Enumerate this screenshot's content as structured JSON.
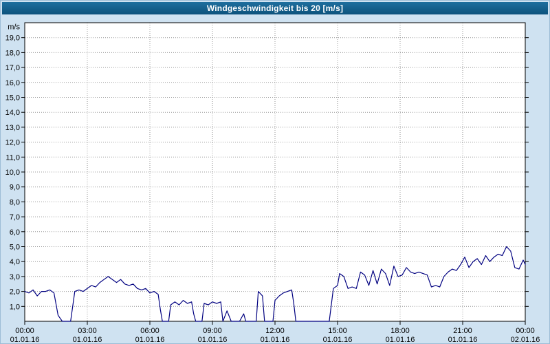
{
  "titlebar": {
    "title": "Windgeschwindigkeit bis 20 [m/s]"
  },
  "colors": {
    "background": "#cfe2f1",
    "titlebar_top": "#1e6f9e",
    "titlebar_bottom": "#0d527c",
    "title_text": "#ffffff",
    "plot_background": "#ffffff",
    "axis": "#000000",
    "grid": "#999999",
    "series_line": "#000080"
  },
  "chart_data": {
    "type": "line",
    "title": "Windgeschwindigkeit bis 20 [m/s]",
    "ylabel": "m/s",
    "xlabel": "",
    "ylim": [
      0,
      20
    ],
    "xlim_hours": [
      0,
      24
    ],
    "grid": true,
    "legend_position": "none",
    "grid_color": "#999999",
    "y_tick_labels_top_down": [
      "19,0",
      "18,0",
      "17,0",
      "16,0",
      "15,0",
      "14,0",
      "13,0",
      "12,0",
      "11,0",
      "10,0",
      "9,0",
      "8,0",
      "7,0",
      "6,0",
      "5,0",
      "4,0",
      "3,0",
      "2,0",
      "1,0"
    ],
    "x_ticks": [
      {
        "hour": 0,
        "time": "00:00",
        "date": "01.01.16"
      },
      {
        "hour": 3,
        "time": "03:00",
        "date": "01.01.16"
      },
      {
        "hour": 6,
        "time": "06:00",
        "date": "01.01.16"
      },
      {
        "hour": 9,
        "time": "09:00",
        "date": "01.01.16"
      },
      {
        "hour": 12,
        "time": "12:00",
        "date": "01.01.16"
      },
      {
        "hour": 15,
        "time": "15:00",
        "date": "01.01.16"
      },
      {
        "hour": 18,
        "time": "18:00",
        "date": "01.01.16"
      },
      {
        "hour": 21,
        "time": "21:00",
        "date": "01.01.16"
      },
      {
        "hour": 24,
        "time": "00:00",
        "date": "02.01.16"
      }
    ],
    "series": [
      {
        "name": "Windgeschwindigkeit",
        "color": "#000080",
        "points_hour_value": [
          [
            0,
            2.0
          ],
          [
            0.2,
            1.9
          ],
          [
            0.4,
            2.1
          ],
          [
            0.6,
            1.7
          ],
          [
            0.8,
            2.0
          ],
          [
            1.0,
            2.0
          ],
          [
            1.2,
            2.1
          ],
          [
            1.4,
            1.9
          ],
          [
            1.6,
            0.4
          ],
          [
            1.8,
            0
          ],
          [
            2.2,
            0
          ],
          [
            2.4,
            2.0
          ],
          [
            2.6,
            2.1
          ],
          [
            2.8,
            2.0
          ],
          [
            3.0,
            2.2
          ],
          [
            3.2,
            2.4
          ],
          [
            3.4,
            2.3
          ],
          [
            3.6,
            2.6
          ],
          [
            3.8,
            2.8
          ],
          [
            4.0,
            3.0
          ],
          [
            4.2,
            2.8
          ],
          [
            4.4,
            2.6
          ],
          [
            4.6,
            2.8
          ],
          [
            4.8,
            2.5
          ],
          [
            5.0,
            2.4
          ],
          [
            5.2,
            2.5
          ],
          [
            5.4,
            2.2
          ],
          [
            5.6,
            2.1
          ],
          [
            5.8,
            2.2
          ],
          [
            6.0,
            1.9
          ],
          [
            6.2,
            2.0
          ],
          [
            6.4,
            1.8
          ],
          [
            6.5,
            0.8
          ],
          [
            6.6,
            0
          ],
          [
            6.9,
            0
          ],
          [
            7.0,
            1.1
          ],
          [
            7.2,
            1.3
          ],
          [
            7.4,
            1.1
          ],
          [
            7.6,
            1.4
          ],
          [
            7.8,
            1.2
          ],
          [
            8.0,
            1.3
          ],
          [
            8.1,
            0.5
          ],
          [
            8.2,
            0
          ],
          [
            8.5,
            0
          ],
          [
            8.6,
            1.2
          ],
          [
            8.8,
            1.1
          ],
          [
            9.0,
            1.3
          ],
          [
            9.2,
            1.2
          ],
          [
            9.4,
            1.3
          ],
          [
            9.5,
            0
          ],
          [
            9.7,
            0.7
          ],
          [
            9.9,
            0
          ],
          [
            10.3,
            0
          ],
          [
            10.5,
            0.5
          ],
          [
            10.6,
            0
          ],
          [
            11.1,
            0
          ],
          [
            11.2,
            2.0
          ],
          [
            11.4,
            1.7
          ],
          [
            11.5,
            0
          ],
          [
            11.9,
            0
          ],
          [
            12.0,
            1.4
          ],
          [
            12.2,
            1.7
          ],
          [
            12.4,
            1.9
          ],
          [
            12.6,
            2.0
          ],
          [
            12.8,
            2.1
          ],
          [
            12.9,
            1.2
          ],
          [
            13.0,
            0
          ],
          [
            14.6,
            0
          ],
          [
            14.8,
            2.2
          ],
          [
            15.0,
            2.4
          ],
          [
            15.1,
            3.2
          ],
          [
            15.3,
            3.0
          ],
          [
            15.5,
            2.2
          ],
          [
            15.7,
            2.3
          ],
          [
            15.9,
            2.2
          ],
          [
            16.1,
            3.3
          ],
          [
            16.3,
            3.1
          ],
          [
            16.5,
            2.4
          ],
          [
            16.7,
            3.4
          ],
          [
            16.9,
            2.5
          ],
          [
            17.1,
            3.5
          ],
          [
            17.3,
            3.2
          ],
          [
            17.5,
            2.4
          ],
          [
            17.7,
            3.7
          ],
          [
            17.9,
            3.0
          ],
          [
            18.1,
            3.1
          ],
          [
            18.3,
            3.6
          ],
          [
            18.5,
            3.3
          ],
          [
            18.7,
            3.2
          ],
          [
            18.9,
            3.3
          ],
          [
            19.1,
            3.2
          ],
          [
            19.3,
            3.1
          ],
          [
            19.5,
            2.3
          ],
          [
            19.7,
            2.4
          ],
          [
            19.9,
            2.3
          ],
          [
            20.1,
            3.0
          ],
          [
            20.3,
            3.3
          ],
          [
            20.5,
            3.5
          ],
          [
            20.7,
            3.4
          ],
          [
            20.9,
            3.8
          ],
          [
            21.1,
            4.3
          ],
          [
            21.3,
            3.6
          ],
          [
            21.5,
            4.0
          ],
          [
            21.7,
            4.2
          ],
          [
            21.9,
            3.8
          ],
          [
            22.1,
            4.4
          ],
          [
            22.3,
            4.0
          ],
          [
            22.5,
            4.3
          ],
          [
            22.7,
            4.5
          ],
          [
            22.9,
            4.4
          ],
          [
            23.1,
            5.0
          ],
          [
            23.3,
            4.7
          ],
          [
            23.5,
            3.6
          ],
          [
            23.7,
            3.5
          ],
          [
            23.9,
            4.1
          ],
          [
            24.0,
            3.8
          ]
        ]
      }
    ]
  }
}
